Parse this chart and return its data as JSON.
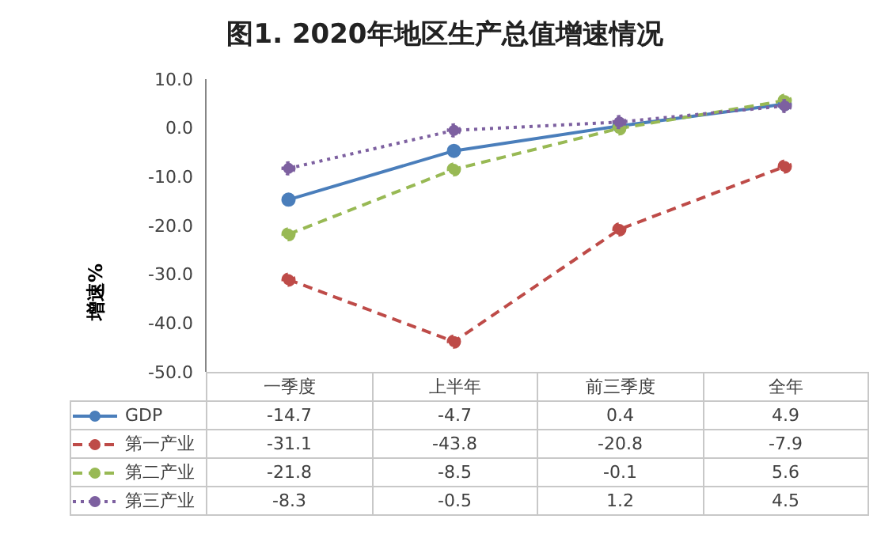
{
  "chart_data": {
    "type": "line",
    "title": "图1. 2020年地区生产总值增速情况",
    "ylabel": "增速%",
    "categories": [
      "一季度",
      "上半年",
      "前三季度",
      "全年"
    ],
    "series": [
      {
        "name": "GDP",
        "color": "#4a7ebb",
        "line_style": "solid",
        "values": [
          -14.7,
          -4.7,
          0.4,
          4.9
        ]
      },
      {
        "name": "第一产业",
        "color": "#be4b48",
        "line_style": "dashed",
        "values": [
          -31.1,
          -43.8,
          -20.8,
          -7.9
        ]
      },
      {
        "name": "第二产业",
        "color": "#98b954",
        "line_style": "dashed",
        "values": [
          -21.8,
          -8.5,
          -0.1,
          5.6
        ]
      },
      {
        "name": "第三产业",
        "color": "#7d60a0",
        "line_style": "dotted",
        "values": [
          -8.3,
          -0.5,
          1.2,
          4.5
        ]
      }
    ],
    "ylim": [
      -50,
      10
    ],
    "yticks": [
      {
        "value": 10,
        "label": "10.0"
      },
      {
        "value": 0,
        "label": "0.0"
      },
      {
        "value": -10,
        "label": "-10.0"
      },
      {
        "value": -20,
        "label": "-20.0"
      },
      {
        "value": -30,
        "label": "-30.0"
      },
      {
        "value": -40,
        "label": "-40.0"
      },
      {
        "value": -50,
        "label": "-50.0"
      }
    ],
    "grid": false,
    "legend": "bottom",
    "marker": "circle",
    "data_labels": true
  }
}
